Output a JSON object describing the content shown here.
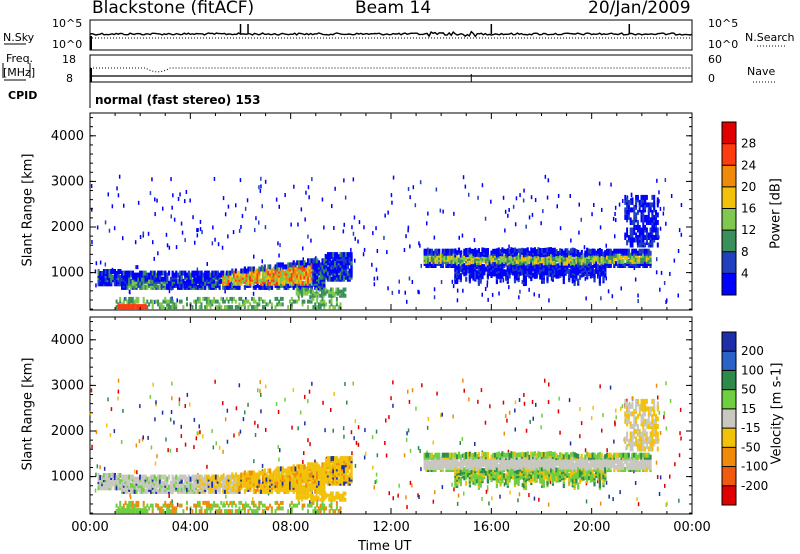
{
  "header": {
    "station": "Blackstone (fitACF)",
    "beam": "Beam 14",
    "date": "20/Jan/2009"
  },
  "status_panels": {
    "nsky_label": "N.Sky",
    "nsky_ticks": [
      "10^5",
      "10^0"
    ],
    "nsearch_label": "N.Search",
    "nsearch_ticks": [
      "10^5",
      "10^0"
    ],
    "freq_label": "Freq.",
    "freq_unit": "[MHz]",
    "freq_ticks": [
      "18",
      "8"
    ],
    "nave_label": "Nave",
    "nave_ticks": [
      "60",
      "0"
    ],
    "cpid_label": "CPID",
    "cpid_text": "normal (fast stereo) 153"
  },
  "chart_data": [
    {
      "type": "heatmap",
      "title": "",
      "ylabel": "Slant Range [km]",
      "xlabel": "",
      "y_ticks": [
        "1000",
        "2000",
        "3000",
        "4000"
      ],
      "ylim": [
        180,
        4500
      ],
      "x_ticks": [
        "00:00",
        "04:00",
        "08:00",
        "12:00",
        "16:00",
        "20:00",
        "00:00"
      ],
      "colorbar": {
        "label": "Power [dB]",
        "ticks": [
          "4",
          "8",
          "12",
          "16",
          "20",
          "24",
          "28"
        ],
        "colors": [
          "#0000ff",
          "#2040c0",
          "#3a8f5a",
          "#7ec850",
          "#f2c20a",
          "#f08a0a",
          "#ff3b10",
          "#e00000"
        ]
      },
      "regions": [
        {
          "t0": 0.3,
          "t1": 10.5,
          "r0": 600,
          "r1": 1350,
          "level": "mixed-blue-green-red"
        },
        {
          "t0": 13.3,
          "t1": 22.3,
          "r0": 700,
          "r1": 1500,
          "level": "mixed-blue-green-yellow"
        }
      ]
    },
    {
      "type": "heatmap",
      "title": "",
      "ylabel": "Slant Range [km]",
      "xlabel": "Time UT",
      "y_ticks": [
        "1000",
        "2000",
        "3000",
        "4000"
      ],
      "ylim": [
        180,
        4500
      ],
      "x_ticks": [
        "00:00",
        "04:00",
        "08:00",
        "12:00",
        "16:00",
        "20:00",
        "00:00"
      ],
      "colorbar": {
        "label": "Velocity [m s-1]",
        "ticks": [
          "200",
          "100",
          "50",
          "15",
          "-15",
          "-50",
          "-100",
          "-200"
        ],
        "colors": [
          "#1c2fa8",
          "#2a62c8",
          "#2d8a4a",
          "#6fcf40",
          "#c8c8c0",
          "#f2c20a",
          "#f08a0a",
          "#f05a10",
          "#e00000"
        ]
      },
      "regions": [
        {
          "t0": 0.3,
          "t1": 10.5,
          "r0": 600,
          "r1": 1350,
          "level": "gray-orange"
        },
        {
          "t0": 13.3,
          "t1": 22.3,
          "r0": 1100,
          "r1": 1350,
          "level": "gray"
        }
      ]
    }
  ]
}
